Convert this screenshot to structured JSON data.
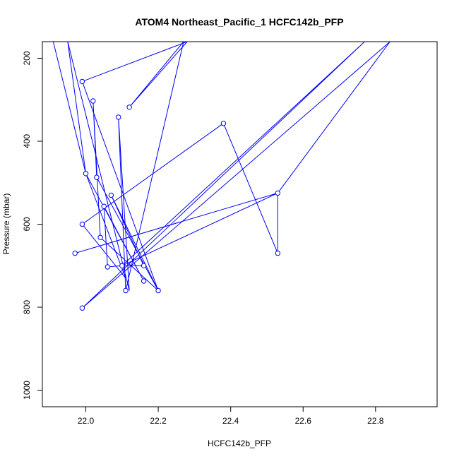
{
  "chart_data": {
    "type": "line",
    "title": "ATOM4 Northeast_Pacific_1 HCFC142b_PFP",
    "xlabel": "HCFC142b_PFP",
    "ylabel": "Pressure (mbar)",
    "xlim": [
      21.88,
      22.97
    ],
    "ylim": [
      1040,
      160
    ],
    "y_reversed": true,
    "x_ticks": [
      22.0,
      22.2,
      22.4,
      22.6,
      22.8
    ],
    "x_tick_labels": [
      "22.0",
      "22.2",
      "22.4",
      "22.6",
      "22.8"
    ],
    "y_ticks": [
      200,
      400,
      600,
      800,
      1000
    ],
    "y_tick_labels": [
      "200",
      "400",
      "600",
      "800",
      "1000"
    ],
    "grid": false,
    "legend": "none",
    "series_color": "#0000ff",
    "marker": "open-circle",
    "series": [
      {
        "points": [
          {
            "x": 21.91,
            "y": 160
          },
          {
            "x": 22.0,
            "y": 478
          },
          {
            "x": 22.16,
            "y": 737
          },
          {
            "x": 22.05,
            "y": 557
          },
          {
            "x": 22.06,
            "y": 703
          },
          {
            "x": 22.1,
            "y": 700
          },
          {
            "x": 22.16,
            "y": 700
          },
          {
            "x": 22.07,
            "y": 530
          },
          {
            "x": 22.2,
            "y": 760
          },
          {
            "x": 22.03,
            "y": 487
          },
          {
            "x": 22.02,
            "y": 303
          },
          {
            "x": 22.04,
            "y": 632
          },
          {
            "x": 22.2,
            "y": 760
          },
          {
            "x": 21.99,
            "y": 256
          },
          {
            "x": 22.28,
            "y": 160
          },
          {
            "x": 22.12,
            "y": 318
          },
          {
            "x": 22.27,
            "y": 160
          },
          {
            "x": 22.11,
            "y": 760
          },
          {
            "x": 22.09,
            "y": 342
          },
          {
            "x": 22.12,
            "y": 760
          },
          {
            "x": 21.95,
            "y": 160
          },
          {
            "x": 22.0,
            "y": 478
          },
          {
            "x": 22.11,
            "y": 730
          },
          {
            "x": 21.99,
            "y": 600
          },
          {
            "x": 22.38,
            "y": 357
          },
          {
            "x": 22.53,
            "y": 670
          },
          {
            "x": 22.53,
            "y": 525
          },
          {
            "x": 22.84,
            "y": 160
          },
          {
            "x": 21.99,
            "y": 802
          },
          {
            "x": 22.77,
            "y": 160
          },
          {
            "x": 22.1,
            "y": 700
          },
          {
            "x": 22.53,
            "y": 525
          },
          {
            "x": 21.97,
            "y": 670
          },
          {
            "x": 22.53,
            "y": 525
          }
        ]
      }
    ],
    "markers": [
      {
        "x": 21.99,
        "y": 256
      },
      {
        "x": 22.02,
        "y": 303
      },
      {
        "x": 22.12,
        "y": 318
      },
      {
        "x": 22.09,
        "y": 342
      },
      {
        "x": 22.38,
        "y": 357
      },
      {
        "x": 22.0,
        "y": 478
      },
      {
        "x": 22.03,
        "y": 487
      },
      {
        "x": 22.53,
        "y": 525
      },
      {
        "x": 22.07,
        "y": 530
      },
      {
        "x": 22.05,
        "y": 557
      },
      {
        "x": 21.99,
        "y": 600
      },
      {
        "x": 22.04,
        "y": 632
      },
      {
        "x": 21.97,
        "y": 670
      },
      {
        "x": 22.53,
        "y": 670
      },
      {
        "x": 22.1,
        "y": 700
      },
      {
        "x": 22.16,
        "y": 700
      },
      {
        "x": 22.06,
        "y": 703
      },
      {
        "x": 22.16,
        "y": 737
      },
      {
        "x": 22.11,
        "y": 760
      },
      {
        "x": 22.2,
        "y": 760
      },
      {
        "x": 21.99,
        "y": 802
      }
    ]
  }
}
